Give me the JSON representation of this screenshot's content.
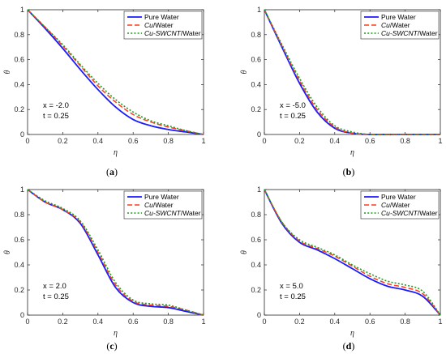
{
  "colors": {
    "pure_water": "#1a1aff",
    "cu_water": "#ff3b1f",
    "cu_swcnt_water": "#1f9a1f"
  },
  "legend": [
    "Pure Water",
    "Cu/Water",
    "Cu-SWCNT/Water"
  ],
  "legend_parts": [
    {
      "italic": "",
      "plain": "Pure Water"
    },
    {
      "italic": "Cu",
      "plain": "/Water"
    },
    {
      "italic": "Cu-SWCNT",
      "plain": "/Water"
    }
  ],
  "chart_data": [
    {
      "panel": "(a)",
      "type": "line",
      "xlabel": "η",
      "ylabel": "θ",
      "xlim": [
        0,
        1
      ],
      "ylim": [
        0,
        1
      ],
      "xticks": [
        "0",
        "0.2",
        "0.4",
        "0.6",
        "0.8",
        "1"
      ],
      "yticks": [
        "0",
        "0.2",
        "0.4",
        "0.6",
        "0.8",
        "1"
      ],
      "annotation": [
        "x = -2.0",
        "t = 0.25"
      ],
      "legend_position": "top-right",
      "x": [
        0,
        0.1,
        0.2,
        0.3,
        0.4,
        0.5,
        0.6,
        0.7,
        0.8,
        0.9,
        1.0
      ],
      "series": [
        {
          "name": "Pure Water",
          "values": [
            1.0,
            0.85,
            0.69,
            0.52,
            0.36,
            0.22,
            0.12,
            0.07,
            0.04,
            0.02,
            0.0
          ]
        },
        {
          "name": "Cu/Water",
          "values": [
            1.0,
            0.86,
            0.71,
            0.55,
            0.39,
            0.26,
            0.16,
            0.1,
            0.06,
            0.03,
            0.0
          ]
        },
        {
          "name": "Cu-SWCNT/Water",
          "values": [
            1.0,
            0.86,
            0.72,
            0.56,
            0.41,
            0.28,
            0.18,
            0.11,
            0.07,
            0.03,
            0.0
          ]
        }
      ]
    },
    {
      "panel": "(b)",
      "type": "line",
      "xlabel": "η",
      "ylabel": "θ",
      "xlim": [
        0,
        1
      ],
      "ylim": [
        0,
        1
      ],
      "xticks": [
        "0",
        "0.2",
        "0.4",
        "0.6",
        "0.8",
        "1"
      ],
      "yticks": [
        "0",
        "0.2",
        "0.4",
        "0.6",
        "0.8",
        "1"
      ],
      "annotation": [
        "x = -5.0",
        "t = 0.25"
      ],
      "legend_position": "top-right",
      "x": [
        0,
        0.1,
        0.2,
        0.3,
        0.4,
        0.5,
        0.6,
        0.7,
        0.8,
        0.9,
        1.0
      ],
      "series": [
        {
          "name": "Pure Water",
          "values": [
            1.0,
            0.7,
            0.41,
            0.18,
            0.05,
            0.01,
            0.0,
            0.0,
            0.0,
            0.0,
            0.0
          ]
        },
        {
          "name": "Cu/Water",
          "values": [
            1.0,
            0.71,
            0.43,
            0.2,
            0.06,
            0.01,
            0.0,
            0.0,
            0.0,
            0.0,
            0.0
          ]
        },
        {
          "name": "Cu-SWCNT/Water",
          "values": [
            1.0,
            0.72,
            0.45,
            0.22,
            0.07,
            0.02,
            0.0,
            0.0,
            0.0,
            0.0,
            0.0
          ]
        }
      ]
    },
    {
      "panel": "(c)",
      "type": "line",
      "xlabel": "η",
      "ylabel": "θ",
      "xlim": [
        0,
        1
      ],
      "ylim": [
        0,
        1
      ],
      "xticks": [
        "0",
        "0.2",
        "0.4",
        "0.6",
        "0.8",
        "1"
      ],
      "yticks": [
        "0",
        "0.2",
        "0.4",
        "0.6",
        "0.8",
        "1"
      ],
      "annotation": [
        "x = 2.0",
        "t = 0.25"
      ],
      "legend_position": "top-right",
      "x": [
        0,
        0.1,
        0.2,
        0.3,
        0.4,
        0.5,
        0.6,
        0.7,
        0.8,
        0.9,
        1.0
      ],
      "series": [
        {
          "name": "Pure Water",
          "values": [
            1.0,
            0.9,
            0.84,
            0.73,
            0.48,
            0.22,
            0.1,
            0.07,
            0.06,
            0.03,
            0.0
          ]
        },
        {
          "name": "Cu/Water",
          "values": [
            1.0,
            0.9,
            0.84,
            0.74,
            0.5,
            0.24,
            0.11,
            0.08,
            0.07,
            0.04,
            0.0
          ]
        },
        {
          "name": "Cu-SWCNT/Water",
          "values": [
            1.0,
            0.91,
            0.85,
            0.75,
            0.52,
            0.26,
            0.12,
            0.09,
            0.08,
            0.04,
            0.0
          ]
        }
      ]
    },
    {
      "panel": "(d)",
      "type": "line",
      "xlabel": "η",
      "ylabel": "θ",
      "xlim": [
        0,
        1
      ],
      "ylim": [
        0,
        1
      ],
      "xticks": [
        "0",
        "0.2",
        "0.4",
        "0.6",
        "0.8",
        "1"
      ],
      "yticks": [
        "0",
        "0.2",
        "0.4",
        "0.6",
        "0.8",
        "1"
      ],
      "annotation": [
        "x = 5.0",
        "t = 0.25"
      ],
      "legend_position": "top-right",
      "x": [
        0,
        0.1,
        0.2,
        0.3,
        0.4,
        0.5,
        0.6,
        0.7,
        0.8,
        0.9,
        1.0
      ],
      "series": [
        {
          "name": "Pure Water",
          "values": [
            1.0,
            0.73,
            0.58,
            0.52,
            0.45,
            0.37,
            0.29,
            0.23,
            0.2,
            0.15,
            0.0
          ]
        },
        {
          "name": "Cu/Water",
          "values": [
            1.0,
            0.74,
            0.59,
            0.53,
            0.47,
            0.39,
            0.31,
            0.25,
            0.22,
            0.17,
            0.0
          ]
        },
        {
          "name": "Cu-SWCNT/Water",
          "values": [
            1.0,
            0.74,
            0.6,
            0.54,
            0.48,
            0.4,
            0.33,
            0.27,
            0.24,
            0.19,
            0.0
          ]
        }
      ]
    }
  ]
}
